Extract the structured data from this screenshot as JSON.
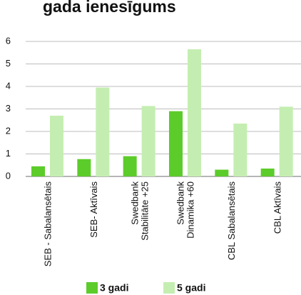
{
  "chart_data": {
    "type": "bar",
    "title": "gada ienesīgums",
    "xlabel": "",
    "ylabel": "",
    "ylim": [
      0,
      6
    ],
    "yticks": [
      0,
      1,
      2,
      3,
      4,
      5,
      6
    ],
    "grid": true,
    "legend_position": "bottom",
    "categories": [
      [
        "SEB - Sabalansētais"
      ],
      [
        "SEB- Aktīvais"
      ],
      [
        "Swedbank",
        "Stabilitāte +25"
      ],
      [
        "Swedbank",
        "Dinamika +60"
      ],
      [
        "CBL Sabalansētais"
      ],
      [
        "CBL Aktīvais"
      ]
    ],
    "series": [
      {
        "name": "3 gadi",
        "color": "#5ccc2a",
        "values": [
          0.45,
          0.77,
          0.9,
          2.9,
          0.3,
          0.35
        ]
      },
      {
        "name": "5 gadi",
        "color": "#c4eeb1",
        "values": [
          2.7,
          3.95,
          3.13,
          5.65,
          2.35,
          3.1
        ]
      }
    ]
  }
}
